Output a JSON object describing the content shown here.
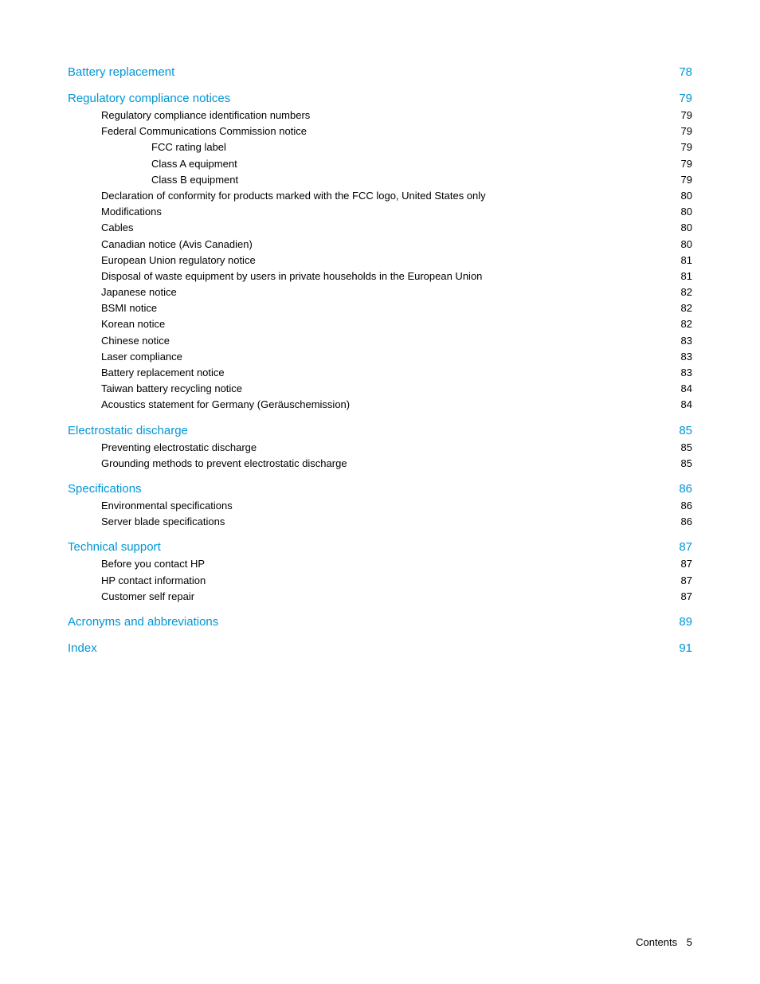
{
  "toc": [
    {
      "level": 0,
      "label": "Battery replacement",
      "page": "78",
      "first": true
    },
    {
      "level": 0,
      "label": "Regulatory compliance notices",
      "page": "79"
    },
    {
      "level": 1,
      "label": "Regulatory compliance identification numbers",
      "page": "79"
    },
    {
      "level": 1,
      "label": "Federal Communications Commission notice",
      "page": "79"
    },
    {
      "level": 2,
      "label": "FCC rating label",
      "page": "79"
    },
    {
      "level": 2,
      "label": "Class A equipment",
      "page": "79"
    },
    {
      "level": 2,
      "label": "Class B equipment",
      "page": "79"
    },
    {
      "level": 1,
      "label": "Declaration of conformity for products marked with the FCC logo, United States only",
      "page": "80"
    },
    {
      "level": 1,
      "label": "Modifications",
      "page": "80"
    },
    {
      "level": 1,
      "label": "Cables",
      "page": "80"
    },
    {
      "level": 1,
      "label": "Canadian notice (Avis Canadien)",
      "page": "80"
    },
    {
      "level": 1,
      "label": "European Union regulatory notice",
      "page": "81"
    },
    {
      "level": 1,
      "label": "Disposal of waste equipment by users in private households in the European Union",
      "page": "81"
    },
    {
      "level": 1,
      "label": "Japanese notice",
      "page": "82"
    },
    {
      "level": 1,
      "label": "BSMI notice",
      "page": "82"
    },
    {
      "level": 1,
      "label": "Korean notice",
      "page": "82"
    },
    {
      "level": 1,
      "label": "Chinese notice",
      "page": "83"
    },
    {
      "level": 1,
      "label": "Laser compliance",
      "page": "83"
    },
    {
      "level": 1,
      "label": "Battery replacement notice",
      "page": "83"
    },
    {
      "level": 1,
      "label": "Taiwan battery recycling notice",
      "page": "84"
    },
    {
      "level": 1,
      "label": "Acoustics statement for Germany (Geräuschemission)",
      "page": "84"
    },
    {
      "level": 0,
      "label": "Electrostatic discharge",
      "page": "85"
    },
    {
      "level": 1,
      "label": "Preventing electrostatic discharge",
      "page": "85"
    },
    {
      "level": 1,
      "label": "Grounding methods to prevent electrostatic discharge",
      "page": "85"
    },
    {
      "level": 0,
      "label": "Specifications",
      "page": "86"
    },
    {
      "level": 1,
      "label": "Environmental specifications",
      "page": "86"
    },
    {
      "level": 1,
      "label": "Server blade specifications",
      "page": "86"
    },
    {
      "level": 0,
      "label": "Technical support",
      "page": "87"
    },
    {
      "level": 1,
      "label": "Before you contact HP",
      "page": "87"
    },
    {
      "level": 1,
      "label": "HP contact information",
      "page": "87"
    },
    {
      "level": 1,
      "label": "Customer self repair",
      "page": "87"
    },
    {
      "level": 0,
      "label": "Acronyms and abbreviations",
      "page": "89"
    },
    {
      "level": 0,
      "label": "Index",
      "page": "91"
    }
  ],
  "footer": {
    "label": "Contents",
    "page": "5"
  },
  "colors": {
    "link": "#0096d6",
    "text": "#000000",
    "background": "#ffffff"
  },
  "typography": {
    "section_fontsize": 15,
    "sub_fontsize": 13,
    "footer_fontsize": 13
  }
}
